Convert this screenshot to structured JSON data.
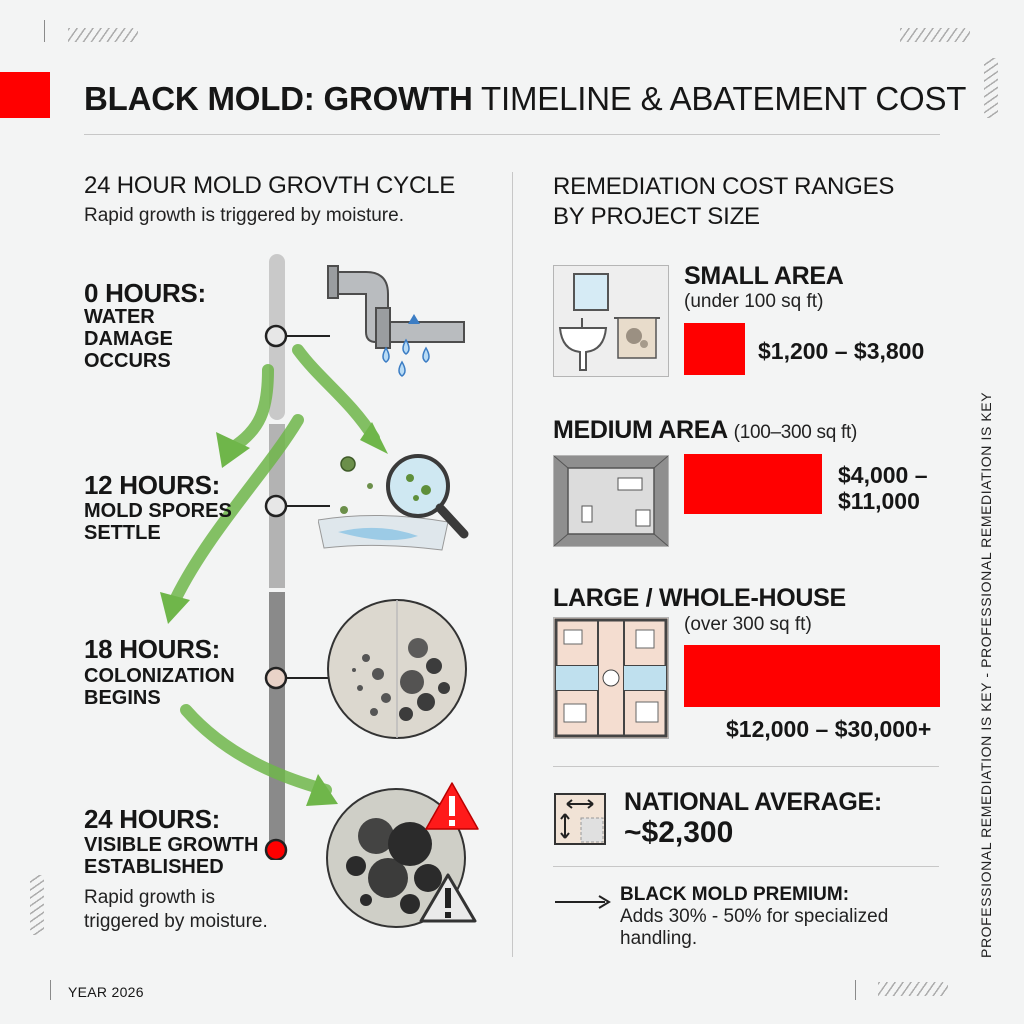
{
  "header": {
    "title_bold": "BLACK MOLD: GROWTH",
    "title_light": "TIMELINE & ABATEMENT COST"
  },
  "timeline": {
    "heading": "24 HOUR MOLD GROVTH CYCLE",
    "subheading": "Rapid growth is triggered by moisture.",
    "stages": [
      {
        "hours": "0 HOURS:",
        "desc": [
          "WATER",
          "DAMAGE",
          "OCCURS"
        ]
      },
      {
        "hours": "12 HOURS:",
        "desc": [
          "MOLD SPORES",
          "SETTLE"
        ]
      },
      {
        "hours": "18 HOURS:",
        "desc": [
          "COLONIZATION",
          "BEGINS"
        ]
      },
      {
        "hours": "24 HOURS:",
        "desc": [
          "VISIBLE GROWTH",
          "ESTABLISHED"
        ]
      }
    ],
    "footnote": [
      "Rapid growth is",
      "triggered by moisture."
    ]
  },
  "costs": {
    "heading": [
      "REMEDIATION COST RANGES",
      "BY PROJECT SIZE"
    ],
    "areas": [
      {
        "title": "SMALL AREA",
        "size": "(under 100 sq ft)",
        "range": "$1,200 – $3,800",
        "low": 1200,
        "high": 3800
      },
      {
        "title": "MEDIUM AREA",
        "size": "(100–300 sq ft)",
        "range_lines": [
          "$4,000 –",
          "$11,000"
        ],
        "low": 4000,
        "high": 11000
      },
      {
        "title": "LARGE / WHOLE-HOUSE",
        "size": "(over 300 sq ft)",
        "range": "$12,000 – $30,000+",
        "low": 12000,
        "high": 30000
      }
    ],
    "national_average": {
      "label": "NATIONAL AVERAGE:",
      "value": "~$2,300"
    },
    "premium": {
      "label": "BLACK MOLD PREMIUM:",
      "text": [
        "Adds 30% - 50% for specialized",
        "handling."
      ]
    }
  },
  "side_text": "PROFESSIONAL REMEDIATION IS KEY   -   PROFESSIONAL REMEDIATION IS KEY",
  "footer": {
    "year": "YEAR 2026"
  },
  "colors": {
    "accent": "#ff0000",
    "arrow": "#6fb64a",
    "track": "#8a8a8a"
  }
}
